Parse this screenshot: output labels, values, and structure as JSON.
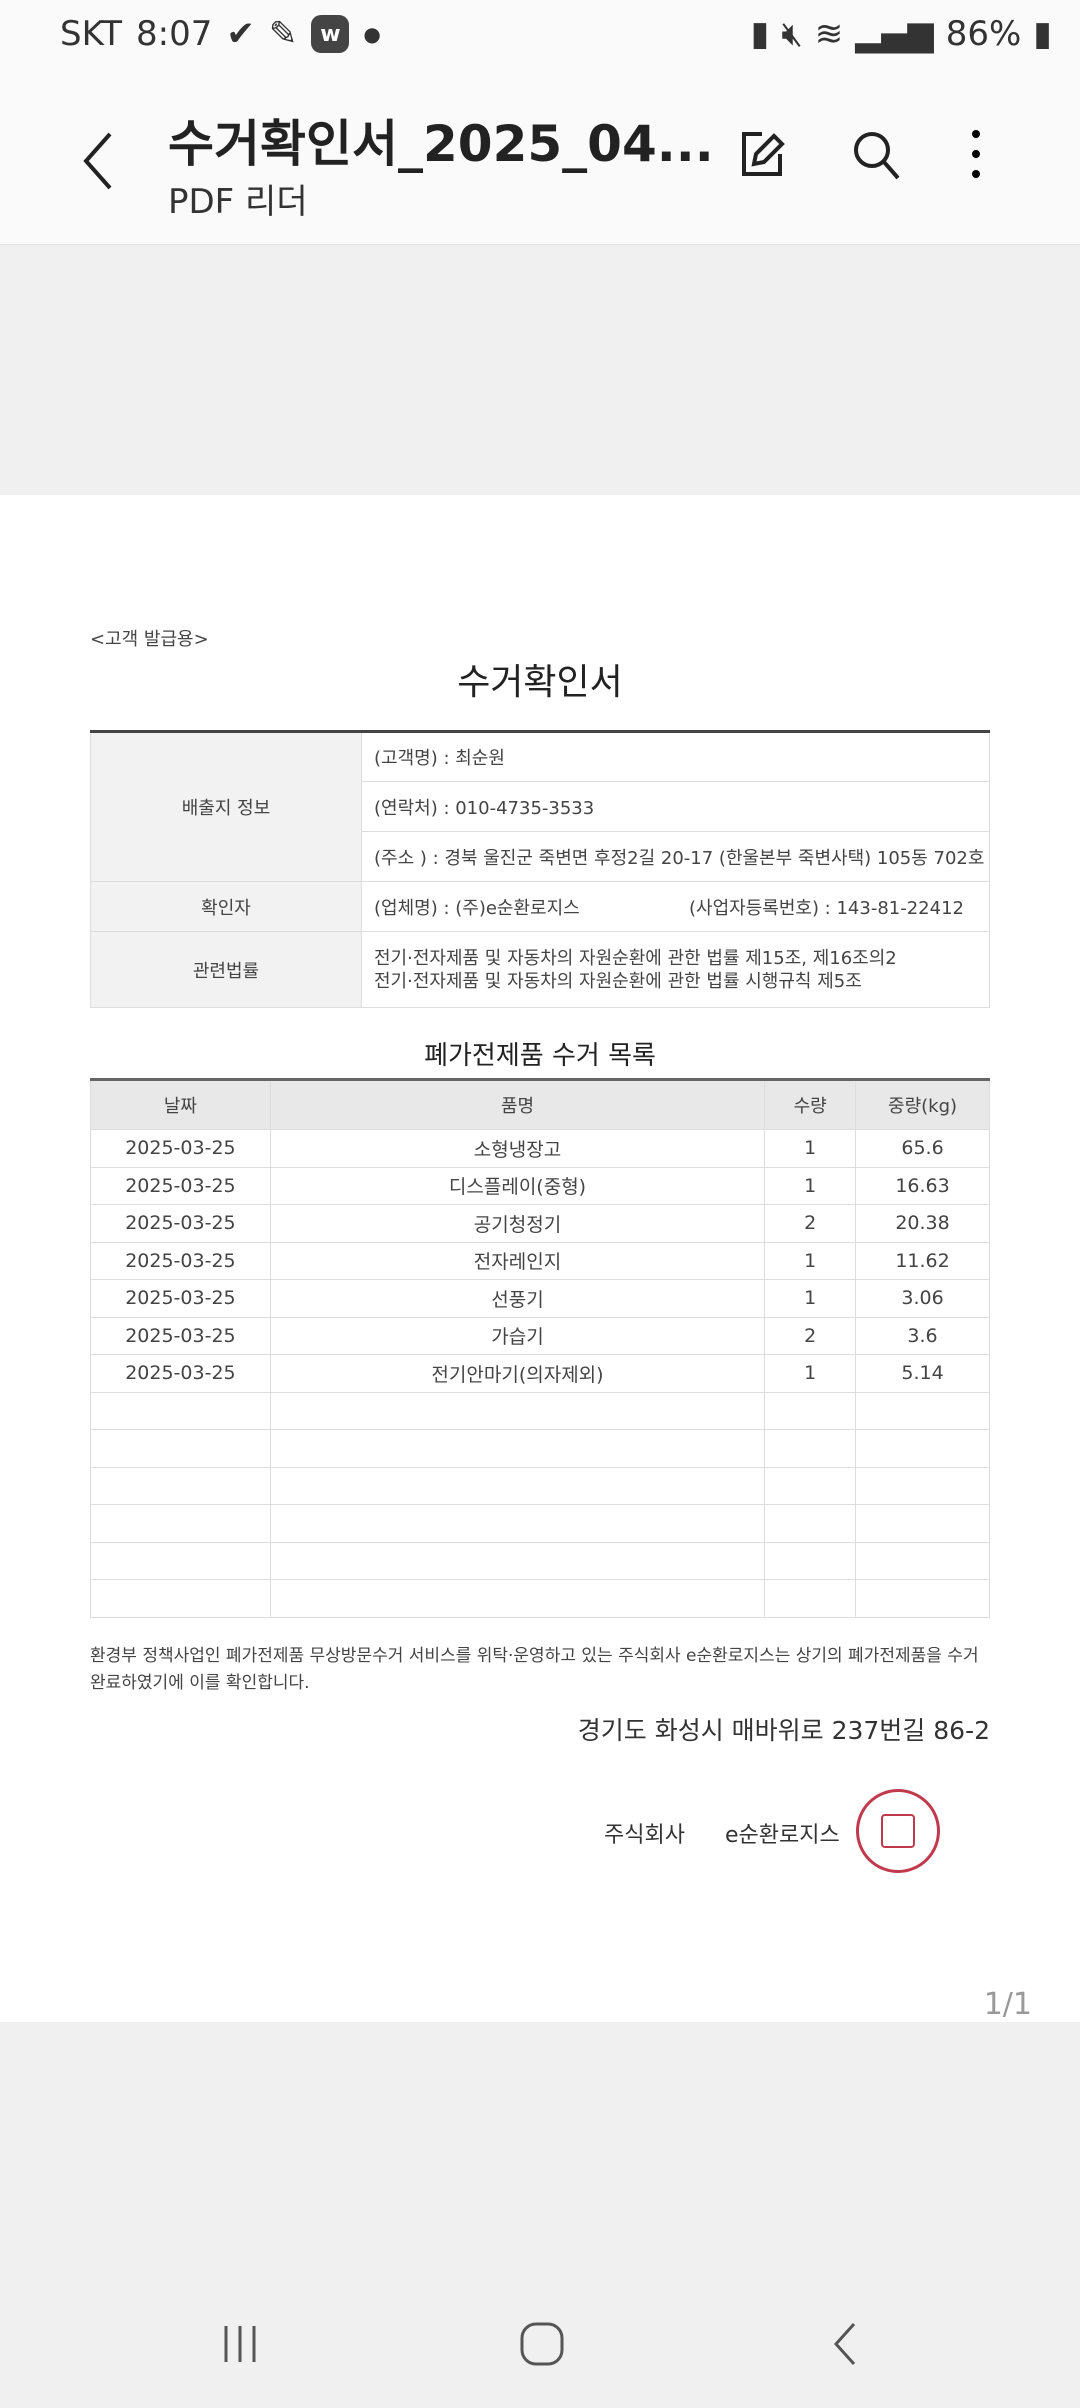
{
  "status": {
    "carrier": "SKT",
    "time": "8:07",
    "battery": "86%"
  },
  "appbar": {
    "title": "수거확인서_2025_04...",
    "subtitle": "PDF 리더"
  },
  "doc": {
    "tag": "<고객 발급용>",
    "title": "수거확인서",
    "info": {
      "discharge_label": "배출지 정보",
      "customer": "(고객명) : 최순원",
      "contact": "(연락처) : 010-4735-3533",
      "address": "(주소 ) : 경북 울진군 죽변면 후정2길 20-17 (한울본부 죽변사택) 105동 702호",
      "confirmer_label": "확인자",
      "company": "(업체명) : (주)e순환로지스",
      "bizno": "(사업자등록번호) : 143-81-22412",
      "law_label": "관련법률",
      "law1": "전기·전자제품 및 자동차의 자원순환에 관한 법률 제15조, 제16조의2",
      "law2": "전기·전자제품 및 자동차의 자원순환에 관한 법률 시행규칙 제5조"
    },
    "list_title": "폐가전제품 수거 목록",
    "columns": [
      "날짜",
      "품명",
      "수량",
      "중량(kg)"
    ],
    "rows": [
      [
        "2025-03-25",
        "소형냉장고",
        "1",
        "65.6"
      ],
      [
        "2025-03-25",
        "디스플레이(중형)",
        "1",
        "16.63"
      ],
      [
        "2025-03-25",
        "공기청정기",
        "2",
        "20.38"
      ],
      [
        "2025-03-25",
        "전자레인지",
        "1",
        "11.62"
      ],
      [
        "2025-03-25",
        "선풍기",
        "1",
        "3.06"
      ],
      [
        "2025-03-25",
        "가습기",
        "2",
        "3.6"
      ],
      [
        "2025-03-25",
        "전기안마기(의자제외)",
        "1",
        "5.14"
      ]
    ],
    "statement": "환경부 정책사업인 폐가전제품 무상방문수거 서비스를 위탁·운영하고 있는 주식회사 e순환로지스는 상기의 폐가전제품을 수거 완료하였기에 이를 확인합니다.",
    "company_address": "경기도 화성시 매바위로 237번길 86-2",
    "company_type": "주식회사",
    "company_name": "e순환로지스",
    "seal_color": "#c0394d"
  },
  "page_indicator": "1/1"
}
